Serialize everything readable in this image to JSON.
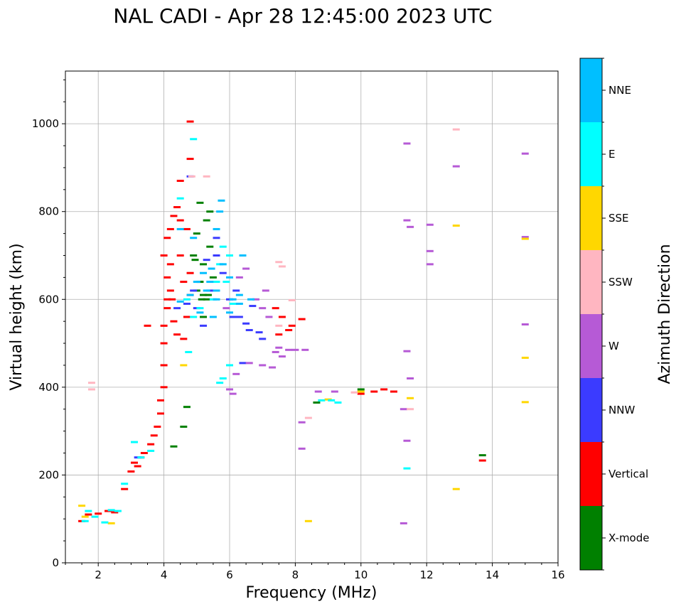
{
  "chart_data": {
    "type": "scatter",
    "title": "NAL CADI - Apr 28 12:45:00 2023 UTC",
    "xlabel": "Frequency (MHz)",
    "ylabel": "Virtual height (km)",
    "xlim": [
      1,
      16
    ],
    "ylim": [
      0,
      1120
    ],
    "xticks": [
      2,
      4,
      6,
      8,
      10,
      12,
      14,
      16
    ],
    "xtick_labels": [
      "2",
      "4",
      "6",
      "8",
      "10",
      "12",
      "14",
      "16"
    ],
    "yticks": [
      0,
      200,
      400,
      600,
      800,
      1000
    ],
    "ytick_labels": [
      "0",
      "200",
      "400",
      "600",
      "800",
      "1000"
    ],
    "grid": true,
    "colorbar": {
      "label": "Azimuth Direction",
      "categories": [
        "X-mode",
        "Vertical",
        "NNW",
        "W",
        "SSW",
        "SSE",
        "E",
        "NNE"
      ],
      "colors": [
        "#008000",
        "#ff0000",
        "#3b3bff",
        "#b65ad6",
        "#ffb6c1",
        "#ffd700",
        "#00ffff",
        "#00bfff"
      ]
    },
    "series": [
      {
        "name": "X-mode",
        "points": [
          [
            4.7,
            355
          ],
          [
            4.3,
            265
          ],
          [
            4.6,
            310
          ],
          [
            4.9,
            700
          ],
          [
            5.0,
            750
          ],
          [
            5.1,
            640
          ],
          [
            5.2,
            610
          ],
          [
            5.3,
            600
          ],
          [
            5.2,
            680
          ],
          [
            5.3,
            780
          ],
          [
            5.4,
            720
          ],
          [
            5.5,
            650
          ],
          [
            5.4,
            800
          ],
          [
            5.0,
            620
          ],
          [
            5.1,
            820
          ],
          [
            5.2,
            560
          ],
          [
            4.95,
            690
          ],
          [
            5.35,
            610
          ],
          [
            5.15,
            600
          ],
          [
            10.0,
            395
          ],
          [
            13.7,
            245
          ],
          [
            8.65,
            365
          ]
        ]
      },
      {
        "name": "Vertical",
        "points": [
          [
            1.5,
            95
          ],
          [
            1.7,
            110
          ],
          [
            2.0,
            112
          ],
          [
            2.3,
            118
          ],
          [
            2.5,
            115
          ],
          [
            2.8,
            168
          ],
          [
            3.0,
            208
          ],
          [
            3.1,
            228
          ],
          [
            3.2,
            220
          ],
          [
            3.3,
            240
          ],
          [
            3.4,
            250
          ],
          [
            3.6,
            270
          ],
          [
            3.7,
            290
          ],
          [
            3.8,
            310
          ],
          [
            3.9,
            340
          ],
          [
            3.9,
            370
          ],
          [
            4.0,
            400
          ],
          [
            4.0,
            450
          ],
          [
            4.0,
            500
          ],
          [
            4.0,
            540
          ],
          [
            4.1,
            580
          ],
          [
            4.1,
            600
          ],
          [
            4.2,
            620
          ],
          [
            4.1,
            650
          ],
          [
            4.2,
            680
          ],
          [
            4.0,
            700
          ],
          [
            4.1,
            740
          ],
          [
            4.2,
            760
          ],
          [
            4.3,
            790
          ],
          [
            4.4,
            810
          ],
          [
            4.5,
            780
          ],
          [
            4.3,
            550
          ],
          [
            4.4,
            520
          ],
          [
            4.6,
            510
          ],
          [
            4.7,
            560
          ],
          [
            4.8,
            610
          ],
          [
            4.6,
            640
          ],
          [
            4.8,
            660
          ],
          [
            4.5,
            700
          ],
          [
            4.8,
            920
          ],
          [
            4.8,
            1005
          ],
          [
            4.5,
            870
          ],
          [
            4.7,
            760
          ],
          [
            7.8,
            530
          ],
          [
            7.9,
            540
          ],
          [
            8.2,
            555
          ],
          [
            7.5,
            520
          ],
          [
            7.4,
            580
          ],
          [
            7.6,
            560
          ],
          [
            10.0,
            385
          ],
          [
            10.4,
            390
          ],
          [
            10.7,
            395
          ],
          [
            11.0,
            390
          ],
          [
            13.7,
            233
          ],
          [
            3.5,
            540
          ],
          [
            4.25,
            600
          ]
        ]
      },
      {
        "name": "NNW",
        "points": [
          [
            3.2,
            240
          ],
          [
            4.4,
            580
          ],
          [
            4.7,
            590
          ],
          [
            4.9,
            620
          ],
          [
            5.0,
            580
          ],
          [
            5.2,
            540
          ],
          [
            5.4,
            620
          ],
          [
            5.6,
            700
          ],
          [
            5.8,
            660
          ],
          [
            6.0,
            600
          ],
          [
            6.2,
            620
          ],
          [
            6.3,
            560
          ],
          [
            6.5,
            545
          ],
          [
            6.7,
            585
          ],
          [
            6.9,
            525
          ],
          [
            7.0,
            510
          ],
          [
            6.4,
            455
          ],
          [
            4.8,
            880
          ],
          [
            5.3,
            690
          ],
          [
            5.6,
            740
          ],
          [
            6.1,
            560
          ],
          [
            6.6,
            530
          ]
        ]
      },
      {
        "name": "W",
        "points": [
          [
            6.3,
            650
          ],
          [
            6.5,
            670
          ],
          [
            6.8,
            600
          ],
          [
            7.0,
            580
          ],
          [
            7.2,
            560
          ],
          [
            7.4,
            480
          ],
          [
            7.5,
            490
          ],
          [
            7.8,
            485
          ],
          [
            7.0,
            450
          ],
          [
            7.3,
            445
          ],
          [
            7.6,
            470
          ],
          [
            6.6,
            455
          ],
          [
            8.0,
            485
          ],
          [
            8.3,
            485
          ],
          [
            8.7,
            390
          ],
          [
            9.2,
            390
          ],
          [
            8.2,
            320
          ],
          [
            8.2,
            260
          ],
          [
            11.4,
            955
          ],
          [
            11.4,
            780
          ],
          [
            11.5,
            765
          ],
          [
            12.1,
            770
          ],
          [
            12.1,
            710
          ],
          [
            12.1,
            680
          ],
          [
            11.4,
            482
          ],
          [
            11.5,
            420
          ],
          [
            11.3,
            350
          ],
          [
            11.4,
            278
          ],
          [
            11.3,
            90
          ],
          [
            12.9,
            903
          ],
          [
            15.0,
            932
          ],
          [
            15.0,
            543
          ],
          [
            15.0,
            742
          ],
          [
            6.1,
            385
          ],
          [
            6.0,
            395
          ],
          [
            5.9,
            580
          ],
          [
            6.2,
            430
          ],
          [
            7.1,
            620
          ]
        ]
      },
      {
        "name": "SSW",
        "points": [
          [
            1.8,
            410
          ],
          [
            1.8,
            395
          ],
          [
            12.9,
            987
          ],
          [
            15.0,
            738
          ],
          [
            7.5,
            685
          ],
          [
            7.6,
            675
          ],
          [
            7.9,
            598
          ],
          [
            7.5,
            540
          ],
          [
            8.4,
            330
          ],
          [
            9.8,
            388
          ],
          [
            11.5,
            350
          ],
          [
            4.85,
            880
          ],
          [
            5.3,
            880
          ]
        ]
      },
      {
        "name": "SSE",
        "points": [
          [
            1.5,
            130
          ],
          [
            1.6,
            105
          ],
          [
            2.4,
            90
          ],
          [
            8.4,
            95
          ],
          [
            12.9,
            768
          ],
          [
            12.9,
            168
          ],
          [
            15.0,
            738
          ],
          [
            15.0,
            467
          ],
          [
            15.0,
            366
          ],
          [
            11.5,
            375
          ],
          [
            9.0,
            372
          ],
          [
            10.0,
            390
          ],
          [
            4.6,
            450
          ]
        ]
      },
      {
        "name": "E",
        "points": [
          [
            1.6,
            95
          ],
          [
            1.7,
            118
          ],
          [
            1.9,
            105
          ],
          [
            2.2,
            92
          ],
          [
            2.4,
            120
          ],
          [
            2.6,
            118
          ],
          [
            2.8,
            180
          ],
          [
            3.1,
            275
          ],
          [
            3.3,
            240
          ],
          [
            3.6,
            255
          ],
          [
            4.7,
            600
          ],
          [
            4.9,
            560
          ],
          [
            5.1,
            580
          ],
          [
            5.5,
            600
          ],
          [
            5.6,
            640
          ],
          [
            5.7,
            680
          ],
          [
            5.8,
            720
          ],
          [
            6.0,
            700
          ],
          [
            5.9,
            640
          ],
          [
            6.1,
            590
          ],
          [
            5.8,
            420
          ],
          [
            5.7,
            410
          ],
          [
            6.0,
            450
          ],
          [
            8.8,
            370
          ],
          [
            9.1,
            370
          ],
          [
            9.3,
            365
          ],
          [
            11.4,
            215
          ],
          [
            4.75,
            480
          ],
          [
            4.5,
            830
          ],
          [
            4.9,
            965
          ]
        ]
      },
      {
        "name": "NNE",
        "points": [
          [
            4.5,
            595
          ],
          [
            4.8,
            610
          ],
          [
            5.0,
            640
          ],
          [
            5.2,
            660
          ],
          [
            5.4,
            640
          ],
          [
            5.6,
            620
          ],
          [
            5.6,
            760
          ],
          [
            5.7,
            800
          ],
          [
            5.8,
            680
          ],
          [
            6.0,
            650
          ],
          [
            6.1,
            600
          ],
          [
            6.3,
            590
          ],
          [
            6.3,
            610
          ],
          [
            6.4,
            700
          ],
          [
            6.0,
            570
          ],
          [
            5.5,
            560
          ],
          [
            5.1,
            570
          ],
          [
            4.9,
            740
          ],
          [
            5.6,
            600
          ],
          [
            6.65,
            600
          ],
          [
            5.3,
            620
          ],
          [
            5.45,
            670
          ],
          [
            4.5,
            760
          ],
          [
            5.75,
            825
          ]
        ]
      }
    ]
  }
}
